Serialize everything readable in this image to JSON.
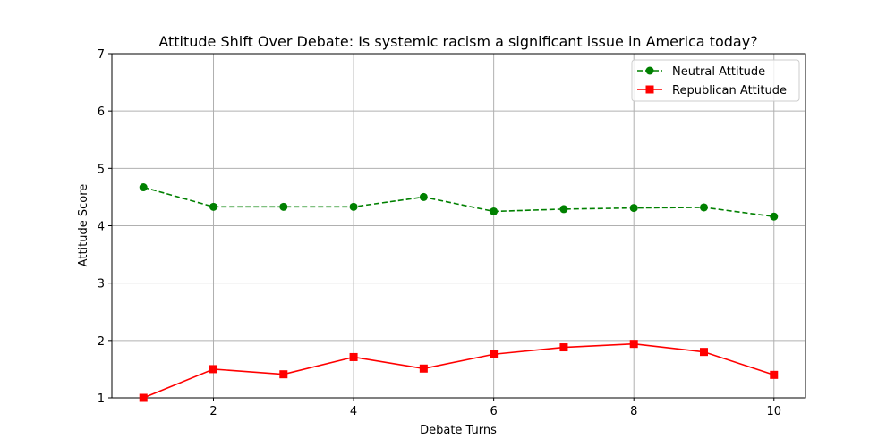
{
  "chart_data": {
    "type": "line",
    "title": "Attitude Shift Over Debate: Is systemic racism a significant issue in America today?",
    "xlabel": "Debate Turns",
    "ylabel": "Attitude Score",
    "x": [
      1,
      2,
      3,
      4,
      5,
      6,
      7,
      8,
      9,
      10
    ],
    "xlim": [
      0.55,
      10.45
    ],
    "ylim": [
      1,
      7
    ],
    "xticks": [
      2,
      4,
      6,
      8,
      10
    ],
    "yticks": [
      1,
      2,
      3,
      4,
      5,
      6,
      7
    ],
    "grid": true,
    "legend_position": "top-right",
    "series": [
      {
        "name": "Neutral Attitude",
        "values": [
          4.67,
          4.33,
          4.33,
          4.33,
          4.5,
          4.25,
          4.29,
          4.31,
          4.32,
          4.16
        ],
        "color": "#008000",
        "line_style": "dashed",
        "marker": "circle"
      },
      {
        "name": "Republican Attitude",
        "values": [
          1.0,
          1.5,
          1.41,
          1.71,
          1.51,
          1.76,
          1.88,
          1.94,
          1.8,
          1.4
        ],
        "color": "#ff0000",
        "line_style": "solid",
        "marker": "square"
      }
    ]
  }
}
